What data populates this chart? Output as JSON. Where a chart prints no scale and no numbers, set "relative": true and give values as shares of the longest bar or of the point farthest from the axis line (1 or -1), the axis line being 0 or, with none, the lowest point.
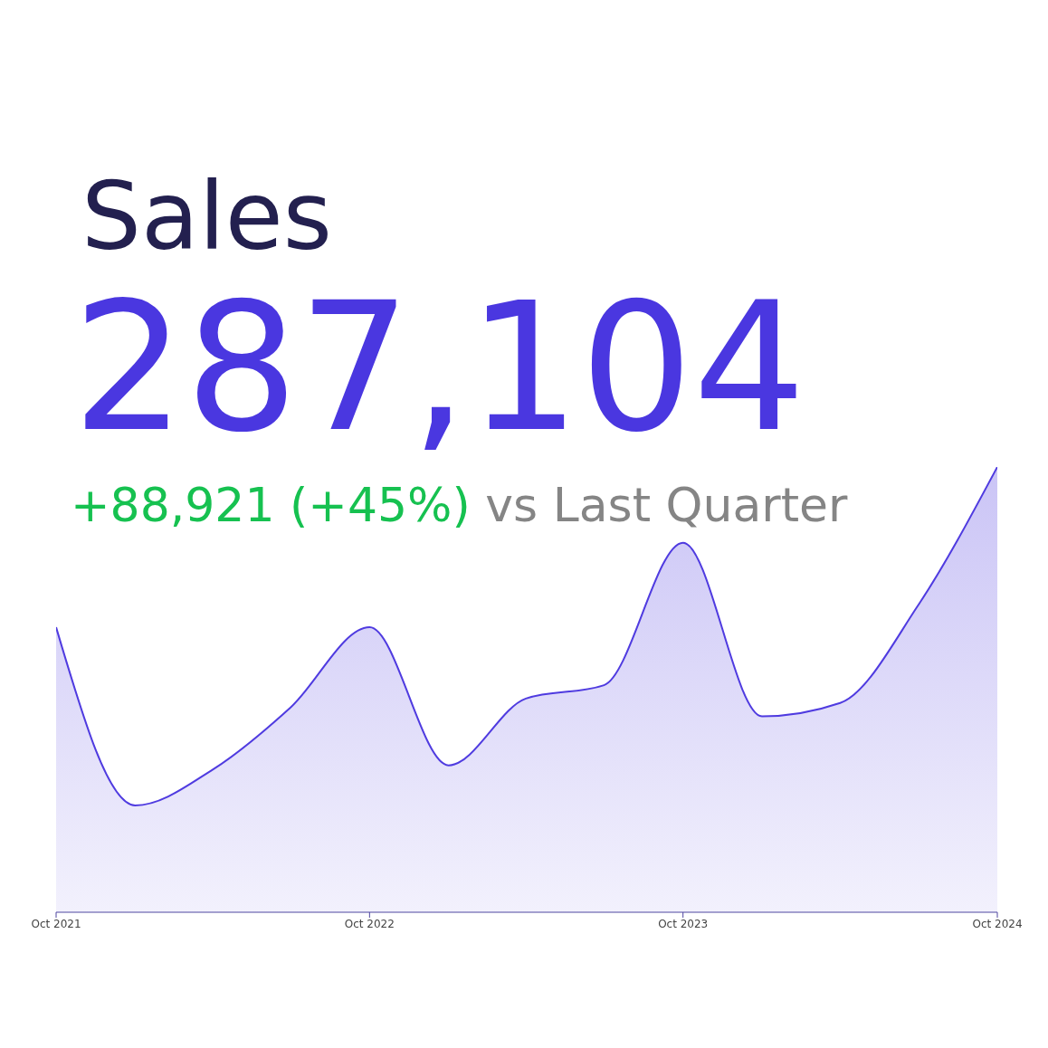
{
  "chart_data": {
    "type": "area",
    "title": "Sales",
    "subtitle": "287,104",
    "annotations": [
      "+88,921 (+45%)",
      "vs Last Quarter"
    ],
    "x": [
      "2021-10",
      "2022-01",
      "2022-04",
      "2022-07",
      "2022-10",
      "2023-01",
      "2023-04",
      "2023-07",
      "2023-10",
      "2024-01",
      "2024-04",
      "2024-07",
      "2024-10"
    ],
    "series": [
      {
        "color": "#4f3be0",
        "values": [
          0.64,
          0.24,
          0.32,
          0.46,
          0.64,
          0.33,
          0.48,
          0.51,
          0.83,
          0.44,
          0.47,
          0.69,
          1
        ]
      }
    ],
    "relative": true,
    "xlim": [
      "2021-10",
      "2024-10"
    ],
    "xticks": [
      {
        "value": "2021-10",
        "label": "Oct 2021"
      },
      {
        "value": "2022-10",
        "label": "Oct 2022"
      },
      {
        "value": "2023-10",
        "label": "Oct 2023"
      },
      {
        "value": "2024-10",
        "label": "Oct 2024"
      }
    ],
    "tick_labels": "x",
    "grid": false,
    "legend": false
  }
}
